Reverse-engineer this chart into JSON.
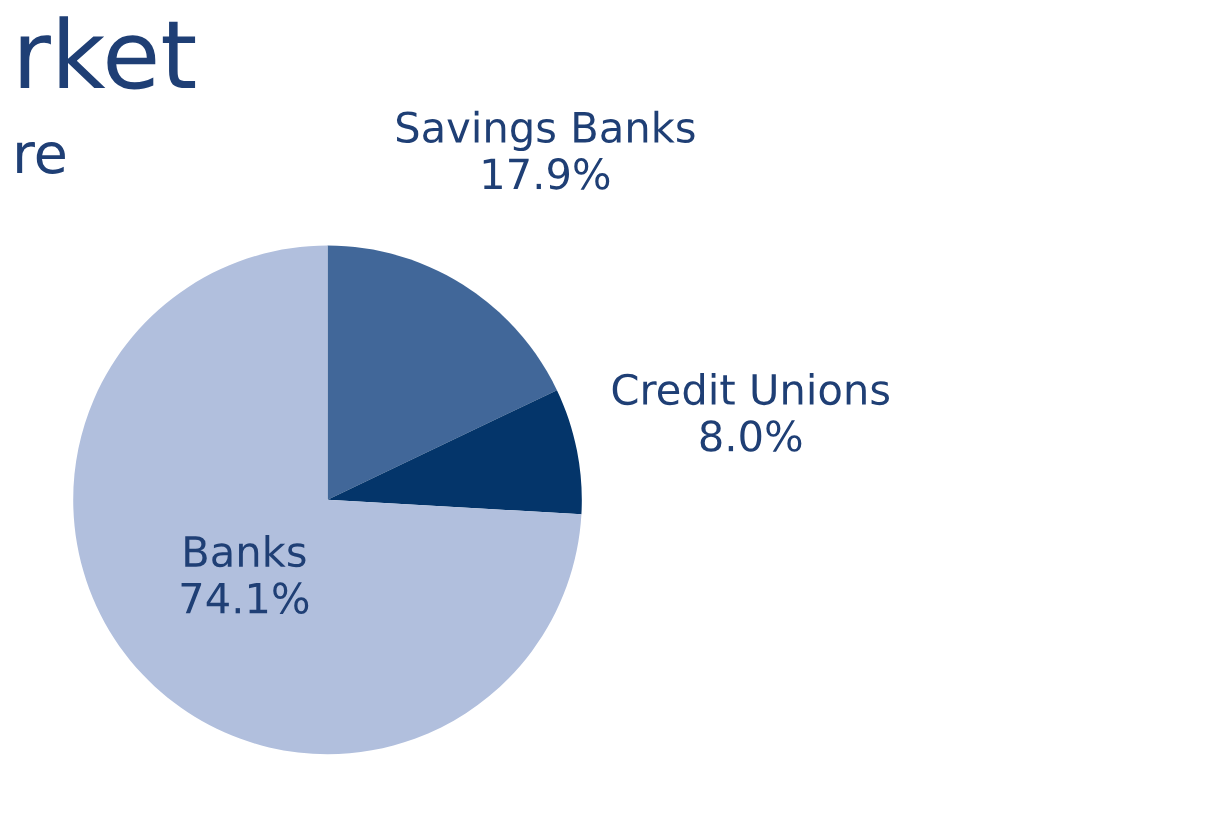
{
  "chart_data": {
    "type": "pie",
    "title": "rket",
    "subtitle": "re",
    "categories": [
      "Savings Banks",
      "Credit Unions",
      "Banks"
    ],
    "values": [
      17.9,
      8.0,
      74.1
    ],
    "colors": [
      "#416799",
      "#04356a",
      "#b1bfdd"
    ],
    "value_labels": [
      "17.9%",
      "8.0%",
      "74.1%"
    ],
    "legend": false
  }
}
